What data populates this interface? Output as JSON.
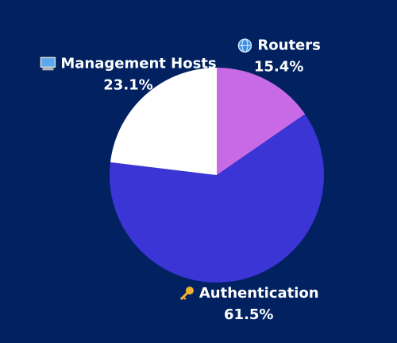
{
  "chart_data": {
    "type": "pie",
    "categories": [
      "Routers",
      "Authentication",
      "Management Hosts"
    ],
    "values": [
      15.4,
      61.5,
      23.1
    ],
    "value_labels": [
      "15.4%",
      "61.5%",
      "23.1%"
    ],
    "colors": [
      "#c86ae6",
      "#3a35d4",
      "#ffffff"
    ]
  }
}
